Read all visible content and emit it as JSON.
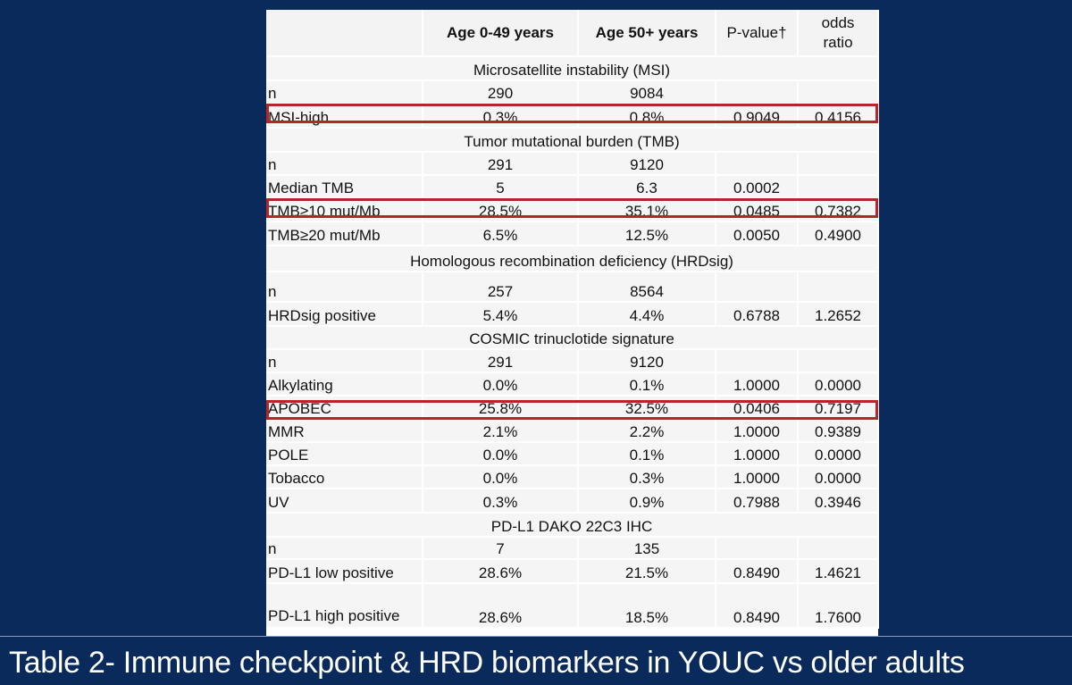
{
  "header": {
    "col1": "Age 0-49 years",
    "col2": "Age 50+ years",
    "col3": "P-value†",
    "col4a": "odds",
    "col4b": "ratio"
  },
  "sections": [
    {
      "title": "Microsatellite instability (MSI)",
      "rows": [
        {
          "label": "n",
          "a": "290",
          "b": "9084",
          "p": "",
          "or": ""
        },
        {
          "label": "MSI-high",
          "a": "0.3%",
          "b": "0.8%",
          "p": "0.9049",
          "or": "0.4156"
        }
      ]
    },
    {
      "title": "Tumor mutational burden (TMB)",
      "rows": [
        {
          "label": "n",
          "a": "291",
          "b": "9120",
          "p": "",
          "or": ""
        },
        {
          "label": "Median TMB",
          "a": "5",
          "b": "6.3",
          "p": "0.0002",
          "or": ""
        },
        {
          "label": "TMB≥10 mut/Mb",
          "a": "28.5%",
          "b": "35.1%",
          "p": "0.0485",
          "or": "0.7382"
        },
        {
          "label": "TMB≥20 mut/Mb",
          "a": "6.5%",
          "b": "12.5%",
          "p": "0.0050",
          "or": "0.4900"
        }
      ]
    },
    {
      "title": "Homologous recombination deficiency (HRDsig)",
      "rows": [
        {
          "label": "n",
          "a": "257",
          "b": "8564",
          "p": "",
          "or": ""
        },
        {
          "label": "HRDsig positive",
          "a": "5.4%",
          "b": "4.4%",
          "p": "0.6788",
          "or": "1.2652"
        }
      ]
    },
    {
      "title": "COSMIC trinuclotide signature",
      "rows": [
        {
          "label": "n",
          "a": "291",
          "b": "9120",
          "p": "",
          "or": ""
        },
        {
          "label": "Alkylating",
          "a": "0.0%",
          "b": "0.1%",
          "p": "1.0000",
          "or": "0.0000"
        },
        {
          "label": "APOBEC",
          "a": "25.8%",
          "b": "32.5%",
          "p": "0.0406",
          "or": "0.7197"
        },
        {
          "label": "MMR",
          "a": "2.1%",
          "b": "2.2%",
          "p": "1.0000",
          "or": "0.9389"
        },
        {
          "label": "POLE",
          "a": "0.0%",
          "b": "0.1%",
          "p": "1.0000",
          "or": "0.0000"
        },
        {
          "label": "Tobacco",
          "a": "0.0%",
          "b": "0.3%",
          "p": "1.0000",
          "or": "0.0000"
        },
        {
          "label": "UV",
          "a": "0.3%",
          "b": "0.9%",
          "p": "0.7988",
          "or": "0.3946"
        }
      ]
    },
    {
      "title": "PD-L1 DAKO 22C3 IHC",
      "rows": [
        {
          "label": "n",
          "a": "7",
          "b": "135",
          "p": "",
          "or": ""
        },
        {
          "label": "PD-L1 low positive",
          "a": "28.6%",
          "b": "21.5%",
          "p": "0.8490",
          "or": "1.4621"
        },
        {
          "label": "PD-L1 high positive",
          "a": "28.6%",
          "b": "18.5%",
          "p": "0.8490",
          "or": "1.7600"
        }
      ]
    }
  ],
  "caption": "Table 2- Immune checkpoint & HRD biomarkers in YOUC vs older adults",
  "colors": {
    "background": "#0b2a5c",
    "highlight": "#b5262b"
  }
}
